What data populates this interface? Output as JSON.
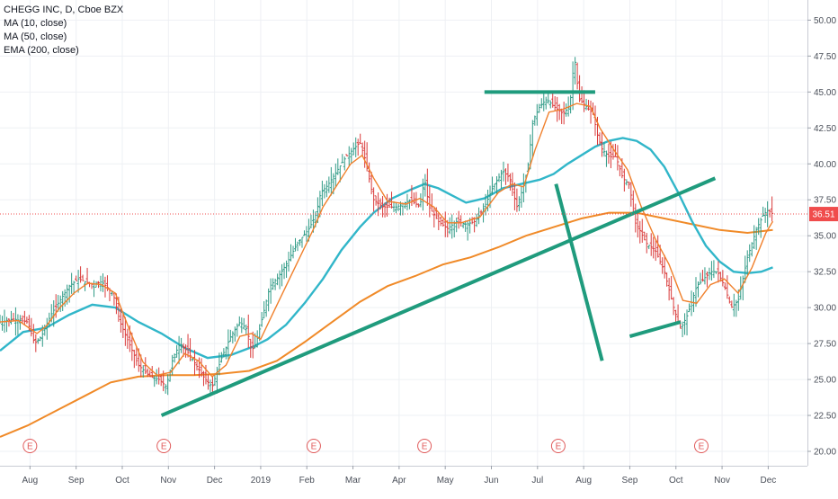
{
  "chart_data": {
    "type": "candlestick",
    "title": "CHEGG INC, D, Cboe BZX",
    "indicators": [
      "MA (10, close)",
      "MA (50, close)",
      "EMA (200, close)"
    ],
    "y_ticks": [
      "20.00",
      "22.50",
      "25.00",
      "27.50",
      "30.00",
      "32.50",
      "35.00",
      "37.50",
      "40.00",
      "42.50",
      "45.00",
      "47.50",
      "50.00"
    ],
    "ylim": [
      19.0,
      51.4
    ],
    "x_ticks": [
      "Aug",
      "Sep",
      "Oct",
      "Nov",
      "Dec",
      "2019",
      "Feb",
      "Mar",
      "Apr",
      "May",
      "Jun",
      "Jul",
      "Aug",
      "Sep",
      "Oct",
      "Nov",
      "Dec"
    ],
    "x_tick_positions": [
      0.65,
      1.65,
      2.65,
      3.65,
      4.65,
      5.65,
      6.65,
      7.65,
      8.65,
      9.65,
      10.65,
      11.65,
      12.65,
      13.65,
      14.65,
      15.65,
      16.65
    ],
    "xlim": [
      0,
      17.5
    ],
    "last_price": "36.51",
    "last_value": 36.51,
    "earnings_marker": "E",
    "earnings_positions": [
      0.65,
      3.55,
      6.8,
      9.2,
      12.1,
      15.2
    ],
    "price_path": [
      [
        0.0,
        29.0
      ],
      [
        0.3,
        29.2
      ],
      [
        0.6,
        29.0
      ],
      [
        0.75,
        27.5
      ],
      [
        0.9,
        28.0
      ],
      [
        1.1,
        29.5
      ],
      [
        1.3,
        30.5
      ],
      [
        1.5,
        31.5
      ],
      [
        1.7,
        32.0
      ],
      [
        1.85,
        31.8
      ],
      [
        2.0,
        31.6
      ],
      [
        2.2,
        31.8
      ],
      [
        2.45,
        31.0
      ],
      [
        2.6,
        29.0
      ],
      [
        2.8,
        27.5
      ],
      [
        3.0,
        26.0
      ],
      [
        3.25,
        25.2
      ],
      [
        3.45,
        25.0
      ],
      [
        3.6,
        24.5
      ],
      [
        3.75,
        26.5
      ],
      [
        3.9,
        27.5
      ],
      [
        4.05,
        27.0
      ],
      [
        4.25,
        26.0
      ],
      [
        4.45,
        25.0
      ],
      [
        4.6,
        24.5
      ],
      [
        4.8,
        26.5
      ],
      [
        5.0,
        28.0
      ],
      [
        5.2,
        29.0
      ],
      [
        5.35,
        28.5
      ],
      [
        5.45,
        27.0
      ],
      [
        5.55,
        27.5
      ],
      [
        5.7,
        29.5
      ],
      [
        5.85,
        31.5
      ],
      [
        6.0,
        32.0
      ],
      [
        6.2,
        33.0
      ],
      [
        6.45,
        34.5
      ],
      [
        6.7,
        35.5
      ],
      [
        6.85,
        36.5
      ],
      [
        6.95,
        38.0
      ],
      [
        7.1,
        38.5
      ],
      [
        7.3,
        39.5
      ],
      [
        7.5,
        40.5
      ],
      [
        7.65,
        41.0
      ],
      [
        7.8,
        41.5
      ],
      [
        7.9,
        40.5
      ],
      [
        8.0,
        39.0
      ],
      [
        8.1,
        37.5
      ],
      [
        8.3,
        37.0
      ],
      [
        8.6,
        37.0
      ],
      [
        8.9,
        37.5
      ],
      [
        9.1,
        37.0
      ],
      [
        9.2,
        39.0
      ],
      [
        9.3,
        37.0
      ],
      [
        9.5,
        36.0
      ],
      [
        9.7,
        35.5
      ],
      [
        9.9,
        36.0
      ],
      [
        10.1,
        35.8
      ],
      [
        10.3,
        36.0
      ],
      [
        10.5,
        37.0
      ],
      [
        10.7,
        38.5
      ],
      [
        10.9,
        39.5
      ],
      [
        11.05,
        39.0
      ],
      [
        11.2,
        37.0
      ],
      [
        11.35,
        38.5
      ],
      [
        11.45,
        40.0
      ],
      [
        11.55,
        43.0
      ],
      [
        11.7,
        44.0
      ],
      [
        11.85,
        44.5
      ],
      [
        12.0,
        44.0
      ],
      [
        12.2,
        43.5
      ],
      [
        12.35,
        44.0
      ],
      [
        12.45,
        47.5
      ],
      [
        12.55,
        44.5
      ],
      [
        12.7,
        44.0
      ],
      [
        12.85,
        43.5
      ],
      [
        12.95,
        42.0
      ],
      [
        13.05,
        41.0
      ],
      [
        13.2,
        40.5
      ],
      [
        13.35,
        40.5
      ],
      [
        13.5,
        39.0
      ],
      [
        13.65,
        38.5
      ],
      [
        13.75,
        36.0
      ],
      [
        13.85,
        35.5
      ],
      [
        14.0,
        34.5
      ],
      [
        14.2,
        34.0
      ],
      [
        14.4,
        32.5
      ],
      [
        14.6,
        30.0
      ],
      [
        14.75,
        28.5
      ],
      [
        14.9,
        29.5
      ],
      [
        15.0,
        30.5
      ],
      [
        15.1,
        31.5
      ],
      [
        15.25,
        32.0
      ],
      [
        15.4,
        32.5
      ],
      [
        15.55,
        32.5
      ],
      [
        15.7,
        31.5
      ],
      [
        15.85,
        30.0
      ],
      [
        16.0,
        30.5
      ],
      [
        16.2,
        33.5
      ],
      [
        16.4,
        35.5
      ],
      [
        16.55,
        36.5
      ],
      [
        16.65,
        36.8
      ],
      [
        16.75,
        36.5
      ]
    ],
    "ma10": [
      [
        0.0,
        29.0
      ],
      [
        0.4,
        29.1
      ],
      [
        0.8,
        28.2
      ],
      [
        1.0,
        28.7
      ],
      [
        1.3,
        30.0
      ],
      [
        1.6,
        31.0
      ],
      [
        1.9,
        31.7
      ],
      [
        2.2,
        31.6
      ],
      [
        2.5,
        31.0
      ],
      [
        2.8,
        28.5
      ],
      [
        3.1,
        26.2
      ],
      [
        3.4,
        25.3
      ],
      [
        3.7,
        25.5
      ],
      [
        4.0,
        26.8
      ],
      [
        4.3,
        26.3
      ],
      [
        4.6,
        25.2
      ],
      [
        4.9,
        26.0
      ],
      [
        5.2,
        28.0
      ],
      [
        5.45,
        28.2
      ],
      [
        5.65,
        27.8
      ],
      [
        5.9,
        29.5
      ],
      [
        6.2,
        31.5
      ],
      [
        6.5,
        33.5
      ],
      [
        6.8,
        35.5
      ],
      [
        7.0,
        37.0
      ],
      [
        7.3,
        38.5
      ],
      [
        7.6,
        40.0
      ],
      [
        7.85,
        40.6
      ],
      [
        8.1,
        39.0
      ],
      [
        8.4,
        37.4
      ],
      [
        8.8,
        37.2
      ],
      [
        9.1,
        37.6
      ],
      [
        9.4,
        37.0
      ],
      [
        9.7,
        35.9
      ],
      [
        10.0,
        35.9
      ],
      [
        10.4,
        36.3
      ],
      [
        10.8,
        38.0
      ],
      [
        11.1,
        38.6
      ],
      [
        11.35,
        38.4
      ],
      [
        11.6,
        41.0
      ],
      [
        11.9,
        43.6
      ],
      [
        12.2,
        43.8
      ],
      [
        12.5,
        44.2
      ],
      [
        12.8,
        44.0
      ],
      [
        13.0,
        42.5
      ],
      [
        13.3,
        41.0
      ],
      [
        13.6,
        39.6
      ],
      [
        13.9,
        37.0
      ],
      [
        14.2,
        34.8
      ],
      [
        14.5,
        33.0
      ],
      [
        14.8,
        30.5
      ],
      [
        15.1,
        30.3
      ],
      [
        15.4,
        31.6
      ],
      [
        15.7,
        32.0
      ],
      [
        16.0,
        31.0
      ],
      [
        16.3,
        32.8
      ],
      [
        16.6,
        35.2
      ],
      [
        16.75,
        36.0
      ]
    ],
    "ma50": [
      [
        0.0,
        27.0
      ],
      [
        0.5,
        28.3
      ],
      [
        1.0,
        28.6
      ],
      [
        1.5,
        29.5
      ],
      [
        2.0,
        30.2
      ],
      [
        2.5,
        30.0
      ],
      [
        3.0,
        29.0
      ],
      [
        3.5,
        28.2
      ],
      [
        4.0,
        27.2
      ],
      [
        4.5,
        26.5
      ],
      [
        5.0,
        26.7
      ],
      [
        5.5,
        27.3
      ],
      [
        5.8,
        27.8
      ],
      [
        6.2,
        28.8
      ],
      [
        6.6,
        30.3
      ],
      [
        7.0,
        32.0
      ],
      [
        7.4,
        34.0
      ],
      [
        7.8,
        35.6
      ],
      [
        8.1,
        36.6
      ],
      [
        8.5,
        37.6
      ],
      [
        8.9,
        38.2
      ],
      [
        9.2,
        38.6
      ],
      [
        9.5,
        38.3
      ],
      [
        9.8,
        37.8
      ],
      [
        10.1,
        37.3
      ],
      [
        10.5,
        37.6
      ],
      [
        10.9,
        38.3
      ],
      [
        11.3,
        38.6
      ],
      [
        11.7,
        38.9
      ],
      [
        12.0,
        39.3
      ],
      [
        12.3,
        40.0
      ],
      [
        12.6,
        40.6
      ],
      [
        12.9,
        41.2
      ],
      [
        13.2,
        41.6
      ],
      [
        13.5,
        41.8
      ],
      [
        13.8,
        41.6
      ],
      [
        14.1,
        41.0
      ],
      [
        14.4,
        39.8
      ],
      [
        14.7,
        38.0
      ],
      [
        15.0,
        36.0
      ],
      [
        15.3,
        34.3
      ],
      [
        15.6,
        33.2
      ],
      [
        15.9,
        32.5
      ],
      [
        16.2,
        32.4
      ],
      [
        16.5,
        32.5
      ],
      [
        16.75,
        32.8
      ]
    ],
    "ema200": [
      [
        0.0,
        21.0
      ],
      [
        0.6,
        21.8
      ],
      [
        1.2,
        22.8
      ],
      [
        1.8,
        23.8
      ],
      [
        2.4,
        24.8
      ],
      [
        3.0,
        25.2
      ],
      [
        3.6,
        25.3
      ],
      [
        4.2,
        25.3
      ],
      [
        4.8,
        25.4
      ],
      [
        5.4,
        25.6
      ],
      [
        6.0,
        26.3
      ],
      [
        6.6,
        27.6
      ],
      [
        7.2,
        29.0
      ],
      [
        7.8,
        30.4
      ],
      [
        8.4,
        31.5
      ],
      [
        9.0,
        32.2
      ],
      [
        9.6,
        33.0
      ],
      [
        10.2,
        33.5
      ],
      [
        10.8,
        34.2
      ],
      [
        11.4,
        35.0
      ],
      [
        12.0,
        35.6
      ],
      [
        12.6,
        36.2
      ],
      [
        13.2,
        36.6
      ],
      [
        13.8,
        36.6
      ],
      [
        14.4,
        36.2
      ],
      [
        15.0,
        35.8
      ],
      [
        15.6,
        35.4
      ],
      [
        16.2,
        35.2
      ],
      [
        16.75,
        35.4
      ]
    ],
    "trendlines": [
      {
        "x1": 3.5,
        "y1": 22.5,
        "x2": 15.5,
        "y2": 39.0
      },
      {
        "x1": 10.5,
        "y1": 45.0,
        "x2": 12.9,
        "y2": 45.0
      },
      {
        "x1": 12.05,
        "y1": 38.6,
        "x2": 13.05,
        "y2": 26.3
      },
      {
        "x1": 13.65,
        "y1": 28.0,
        "x2": 14.75,
        "y2": 29.0
      }
    ],
    "colors": {
      "ma10": "#f0802c",
      "ma50": "#31b6c9",
      "ema200": "#f08a28",
      "trendline": "#1f9b7d",
      "bars": "#d93a3a",
      "bars_alt": "#2f9a86",
      "last_price": "#f04c4c"
    }
  }
}
